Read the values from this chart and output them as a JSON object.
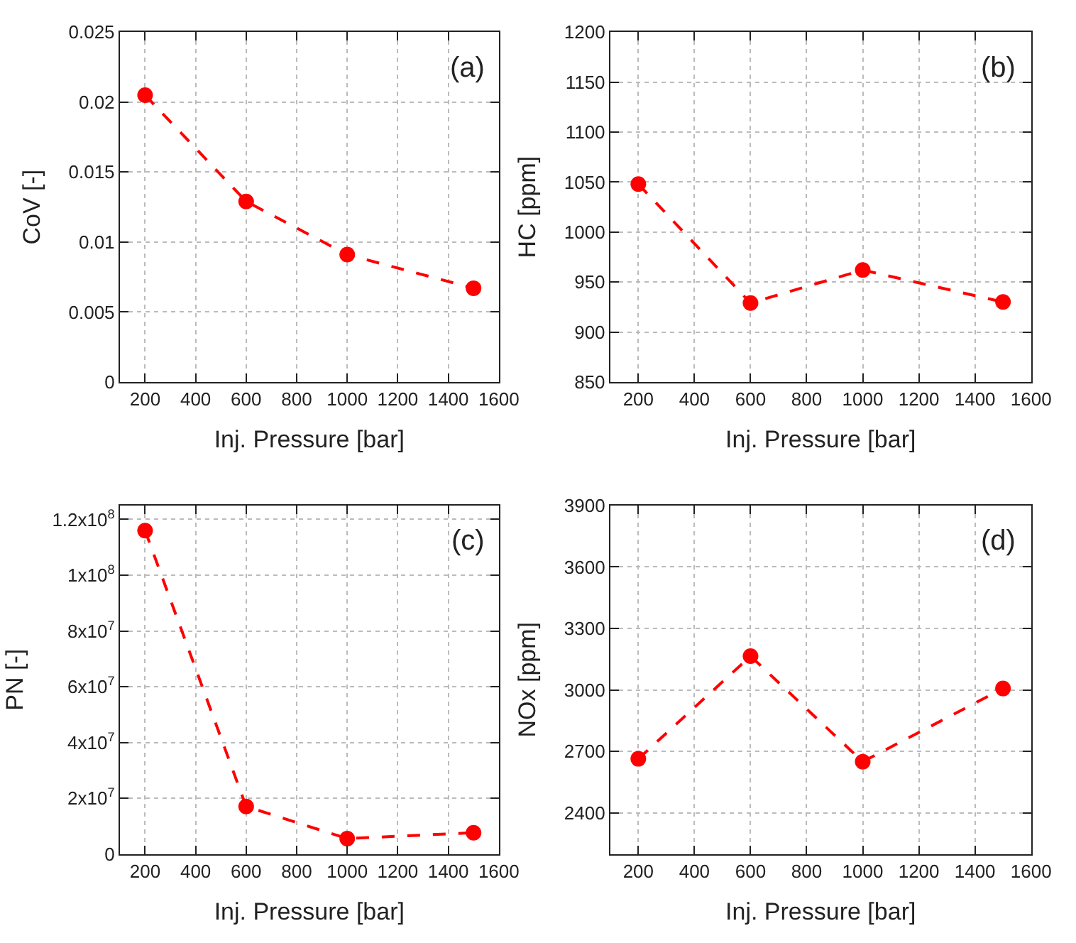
{
  "chart_data": [
    {
      "type": "line",
      "xlabel": "Inj. Pressure [bar]",
      "ylabel": "CoV [-]",
      "annotations": [
        "(a)"
      ],
      "x": [
        200,
        600,
        1000,
        1500
      ],
      "series": [
        {
          "color": "#ff0000",
          "values": [
            0.0205,
            0.0129,
            0.0091,
            0.0067
          ]
        }
      ],
      "xlim": [
        100,
        1600
      ],
      "xticks": [
        200,
        400,
        600,
        800,
        1000,
        1200,
        1400,
        1600
      ],
      "ylim": [
        0,
        0.025
      ],
      "yticks": [
        0,
        0.005,
        0.01,
        0.015,
        0.02,
        0.025
      ],
      "grid": true,
      "marker": "circle",
      "line_style": "dashed"
    },
    {
      "type": "line",
      "xlabel": "Inj. Pressure [bar]",
      "ylabel": "HC [ppm]",
      "annotations": [
        "(b)"
      ],
      "x": [
        200,
        600,
        1000,
        1500
      ],
      "series": [
        {
          "color": "#ff0000",
          "values": [
            1048,
            929,
            962,
            930
          ]
        }
      ],
      "xlim": [
        100,
        1600
      ],
      "xticks": [
        200,
        400,
        600,
        800,
        1000,
        1200,
        1400,
        1600
      ],
      "ylim": [
        850,
        1200
      ],
      "yticks": [
        850,
        900,
        950,
        1000,
        1050,
        1100,
        1150,
        1200
      ],
      "grid": true,
      "marker": "circle",
      "line_style": "dashed"
    },
    {
      "type": "line",
      "xlabel": "Inj. Pressure [bar]",
      "ylabel": "PN [-]",
      "annotations": [
        "(c)"
      ],
      "x": [
        200,
        600,
        1000,
        1500
      ],
      "series": [
        {
          "color": "#ff0000",
          "values": [
            116000000,
            17000000,
            5500000,
            7600000
          ]
        }
      ],
      "xlim": [
        100,
        1600
      ],
      "xticks": [
        200,
        400,
        600,
        800,
        1000,
        1200,
        1400,
        1600
      ],
      "ylim": [
        0,
        125000000
      ],
      "yticks": [
        0,
        {
          "value": 20000000,
          "label": "2x10$^{7}$"
        },
        {
          "value": 40000000,
          "label": "4x10$^{7}$"
        },
        {
          "value": 60000000,
          "label": "6x10$^{7}$"
        },
        {
          "value": 80000000,
          "label": "8x10$^{7}$"
        },
        {
          "value": 100000000,
          "label": "1x10$^{8}$"
        },
        {
          "value": 120000000,
          "label": "1.2x10$^{8}$"
        }
      ],
      "grid": true,
      "marker": "circle",
      "line_style": "dashed"
    },
    {
      "type": "line",
      "xlabel": "Inj. Pressure [bar]",
      "ylabel": "NOx [ppm]",
      "annotations": [
        "(d)"
      ],
      "x": [
        200,
        600,
        1000,
        1500
      ],
      "series": [
        {
          "color": "#ff0000",
          "values": [
            2664,
            3165,
            2650,
            3007
          ]
        }
      ],
      "xlim": [
        100,
        1600
      ],
      "xticks": [
        200,
        400,
        600,
        800,
        1000,
        1200,
        1400,
        1600
      ],
      "ylim": [
        2200,
        3900
      ],
      "yticks": [
        2400,
        2700,
        3000,
        3300,
        3600,
        3900
      ],
      "grid": true,
      "marker": "circle",
      "line_style": "dashed"
    }
  ]
}
